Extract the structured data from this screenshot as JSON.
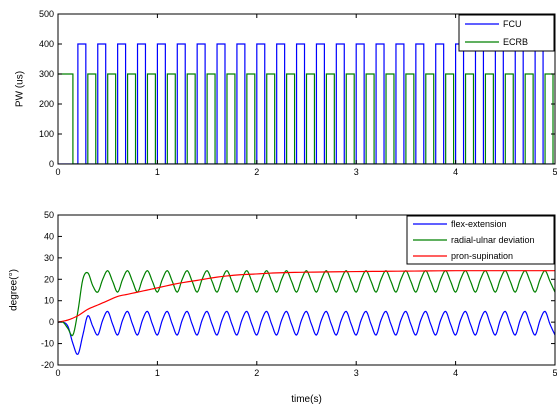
{
  "chart_data": [
    {
      "type": "line",
      "title": "",
      "xlabel": "",
      "ylabel": "PW (us)",
      "xlim": [
        0,
        5
      ],
      "ylim": [
        0,
        500
      ],
      "xticks": [
        0,
        1,
        2,
        3,
        4,
        5
      ],
      "yticks": [
        0,
        100,
        200,
        300,
        400,
        500
      ],
      "xtick_labels": [
        "0",
        "1",
        "2",
        "3",
        "4",
        "5"
      ],
      "ytick_labels": [
        "0",
        "100",
        "200",
        "300",
        "400",
        "500"
      ],
      "grid": false,
      "legend_position": "top-right",
      "series": [
        {
          "name": "FCU",
          "color": "#0000ff",
          "pulse_train": {
            "high": 400,
            "low": 0,
            "segments": [
              [
                0.2,
                0.28
              ],
              [
                0.4,
                0.48
              ],
              [
                0.6,
                0.68
              ],
              [
                0.8,
                0.88
              ],
              [
                1.0,
                1.08
              ],
              [
                1.2,
                1.28
              ],
              [
                1.4,
                1.48
              ],
              [
                1.6,
                1.68
              ],
              [
                1.8,
                1.88
              ],
              [
                2.0,
                2.08
              ],
              [
                2.2,
                2.28
              ],
              [
                2.4,
                2.48
              ],
              [
                2.6,
                2.68
              ],
              [
                2.8,
                2.88
              ],
              [
                3.0,
                3.08
              ],
              [
                3.2,
                3.28
              ],
              [
                3.4,
                3.48
              ],
              [
                3.6,
                3.68
              ],
              [
                3.8,
                3.88
              ],
              [
                4.0,
                4.08
              ],
              [
                4.2,
                4.28
              ],
              [
                4.4,
                4.48
              ],
              [
                4.6,
                4.68
              ],
              [
                4.8,
                4.88
              ]
            ],
            "duration": 5
          }
        },
        {
          "name": "ECRB",
          "color": "#008000",
          "pulse_train": {
            "high": 300,
            "low": 0,
            "initial_high_until": 0.15,
            "segments": [
              [
                0.3,
                0.38
              ],
              [
                0.5,
                0.58
              ],
              [
                0.7,
                0.78
              ],
              [
                0.9,
                0.98
              ],
              [
                1.1,
                1.18
              ],
              [
                1.3,
                1.38
              ],
              [
                1.5,
                1.58
              ],
              [
                1.7,
                1.78
              ],
              [
                1.9,
                1.98
              ],
              [
                2.1,
                2.18
              ],
              [
                2.3,
                2.38
              ],
              [
                2.5,
                2.58
              ],
              [
                2.7,
                2.78
              ],
              [
                2.9,
                2.98
              ],
              [
                3.1,
                3.18
              ],
              [
                3.3,
                3.38
              ],
              [
                3.5,
                3.58
              ],
              [
                3.7,
                3.78
              ],
              [
                3.9,
                3.98
              ],
              [
                4.1,
                4.18
              ],
              [
                4.3,
                4.38
              ],
              [
                4.5,
                4.58
              ],
              [
                4.7,
                4.78
              ],
              [
                4.9,
                4.98
              ]
            ],
            "duration": 5
          }
        }
      ]
    },
    {
      "type": "line",
      "title": "",
      "xlabel": "time(s)",
      "ylabel": "degree(°)",
      "xlim": [
        0,
        5
      ],
      "ylim": [
        -20,
        50
      ],
      "xticks": [
        0,
        1,
        2,
        3,
        4,
        5
      ],
      "yticks": [
        -20,
        -10,
        0,
        10,
        20,
        30,
        40,
        50
      ],
      "xtick_labels": [
        "0",
        "1",
        "2",
        "3",
        "4",
        "5"
      ],
      "ytick_labels": [
        "-20",
        "-10",
        "0",
        "10",
        "20",
        "30",
        "40",
        "50"
      ],
      "grid": false,
      "legend_position": "top-right",
      "series": [
        {
          "name": "flex-extension",
          "color": "#0000ff",
          "x": [
            0,
            0.05,
            0.1,
            0.15,
            0.2,
            0.25,
            0.3,
            0.35,
            0.4,
            0.45,
            0.5,
            0.55,
            0.6,
            0.65,
            0.7,
            0.75,
            0.8,
            0.85,
            0.9,
            0.95,
            1.0,
            1.05,
            1.1,
            1.15,
            1.2,
            1.25,
            1.3,
            1.35,
            1.4,
            1.45,
            1.5,
            1.55,
            1.6,
            1.65,
            1.7,
            1.75,
            1.8,
            1.85,
            1.9,
            1.95,
            2.0,
            2.05,
            2.1,
            2.15,
            2.2,
            2.25,
            2.3,
            2.35,
            2.4,
            2.45,
            2.5,
            2.55,
            2.6,
            2.65,
            2.7,
            2.75,
            2.8,
            2.85,
            2.9,
            2.95,
            3.0,
            3.05,
            3.1,
            3.15,
            3.2,
            3.25,
            3.3,
            3.35,
            3.4,
            3.45,
            3.5,
            3.55,
            3.6,
            3.65,
            3.7,
            3.75,
            3.8,
            3.85,
            3.9,
            3.95,
            4.0,
            4.05,
            4.1,
            4.15,
            4.2,
            4.25,
            4.3,
            4.35,
            4.4,
            4.45,
            4.5,
            4.55,
            4.6,
            4.65,
            4.7,
            4.75,
            4.8,
            4.85,
            4.9,
            4.95,
            5.0
          ],
          "values": [
            0,
            0,
            -2,
            -10,
            -15,
            -6,
            3,
            -2,
            -6,
            1,
            5,
            -1,
            -6,
            1,
            5,
            -1,
            -6,
            1,
            5,
            -1,
            -6,
            1,
            5,
            -1,
            -6,
            1,
            5,
            -1,
            -6,
            1,
            5,
            -1,
            -6,
            1,
            5,
            -1,
            -6,
            1,
            5,
            -1,
            -6,
            1,
            5,
            -1,
            -6,
            1,
            5,
            -1,
            -6,
            1,
            5,
            -1,
            -6,
            1,
            5,
            -1,
            -6,
            1,
            5,
            -1,
            -6,
            1,
            5,
            -1,
            -6,
            1,
            5,
            -1,
            -6,
            1,
            5,
            -1,
            -6,
            1,
            5,
            -1,
            -6,
            1,
            5,
            -1,
            -6,
            1,
            5,
            -1,
            -6,
            1,
            5,
            -1,
            -6,
            1,
            5,
            -1,
            -6,
            1,
            5,
            -1,
            -6,
            1,
            5,
            -1,
            -6
          ]
        },
        {
          "name": "radial-ulnar deviation",
          "color": "#008000",
          "x": [
            0,
            0.05,
            0.1,
            0.15,
            0.2,
            0.25,
            0.3,
            0.35,
            0.4,
            0.45,
            0.5,
            0.55,
            0.6,
            0.65,
            0.7,
            0.75,
            0.8,
            0.85,
            0.9,
            0.95,
            1.0,
            1.05,
            1.1,
            1.15,
            1.2,
            1.25,
            1.3,
            1.35,
            1.4,
            1.45,
            1.5,
            1.55,
            1.6,
            1.65,
            1.7,
            1.75,
            1.8,
            1.85,
            1.9,
            1.95,
            2.0,
            2.05,
            2.1,
            2.15,
            2.2,
            2.25,
            2.3,
            2.35,
            2.4,
            2.45,
            2.5,
            2.55,
            2.6,
            2.65,
            2.7,
            2.75,
            2.8,
            2.85,
            2.9,
            2.95,
            3.0,
            3.05,
            3.1,
            3.15,
            3.2,
            3.25,
            3.3,
            3.35,
            3.4,
            3.45,
            3.5,
            3.55,
            3.6,
            3.65,
            3.7,
            3.75,
            3.8,
            3.85,
            3.9,
            3.95,
            4.0,
            4.05,
            4.1,
            4.15,
            4.2,
            4.25,
            4.3,
            4.35,
            4.4,
            4.45,
            4.5,
            4.55,
            4.6,
            4.65,
            4.7,
            4.75,
            4.8,
            4.85,
            4.9,
            4.95,
            5.0
          ],
          "values": [
            0,
            0,
            -3,
            -6,
            5,
            20,
            23,
            17,
            14,
            20,
            24,
            19,
            14,
            20,
            24,
            19,
            14,
            20,
            24,
            19,
            14,
            20,
            24,
            19,
            14,
            20,
            24,
            19,
            14,
            20,
            24,
            19,
            14,
            20,
            24,
            19,
            14,
            20,
            24,
            19,
            14,
            20,
            24,
            19,
            14,
            20,
            24,
            19,
            14,
            20,
            24,
            19,
            14,
            20,
            24,
            19,
            14,
            20,
            24,
            19,
            14,
            20,
            24,
            19,
            14,
            20,
            24,
            19,
            14,
            20,
            24,
            19,
            14,
            20,
            24,
            19,
            14,
            20,
            24,
            19,
            14,
            20,
            24,
            19,
            14,
            20,
            24,
            19,
            14,
            20,
            24,
            19,
            14,
            20,
            24,
            19,
            14,
            20,
            24,
            19,
            14
          ]
        },
        {
          "name": "pron-supination",
          "color": "#ff0000",
          "x": [
            0,
            0.1,
            0.2,
            0.3,
            0.4,
            0.5,
            0.6,
            0.7,
            0.8,
            0.9,
            1.0,
            1.2,
            1.4,
            1.6,
            1.8,
            2.0,
            2.2,
            2.5,
            3.0,
            3.5,
            4.0,
            4.5,
            5.0
          ],
          "values": [
            0,
            1,
            3,
            6,
            8,
            10,
            12,
            13,
            14,
            15,
            16,
            18,
            19.5,
            21,
            22,
            22.5,
            23,
            23.3,
            23.6,
            23.8,
            24,
            24,
            24
          ]
        }
      ]
    }
  ]
}
